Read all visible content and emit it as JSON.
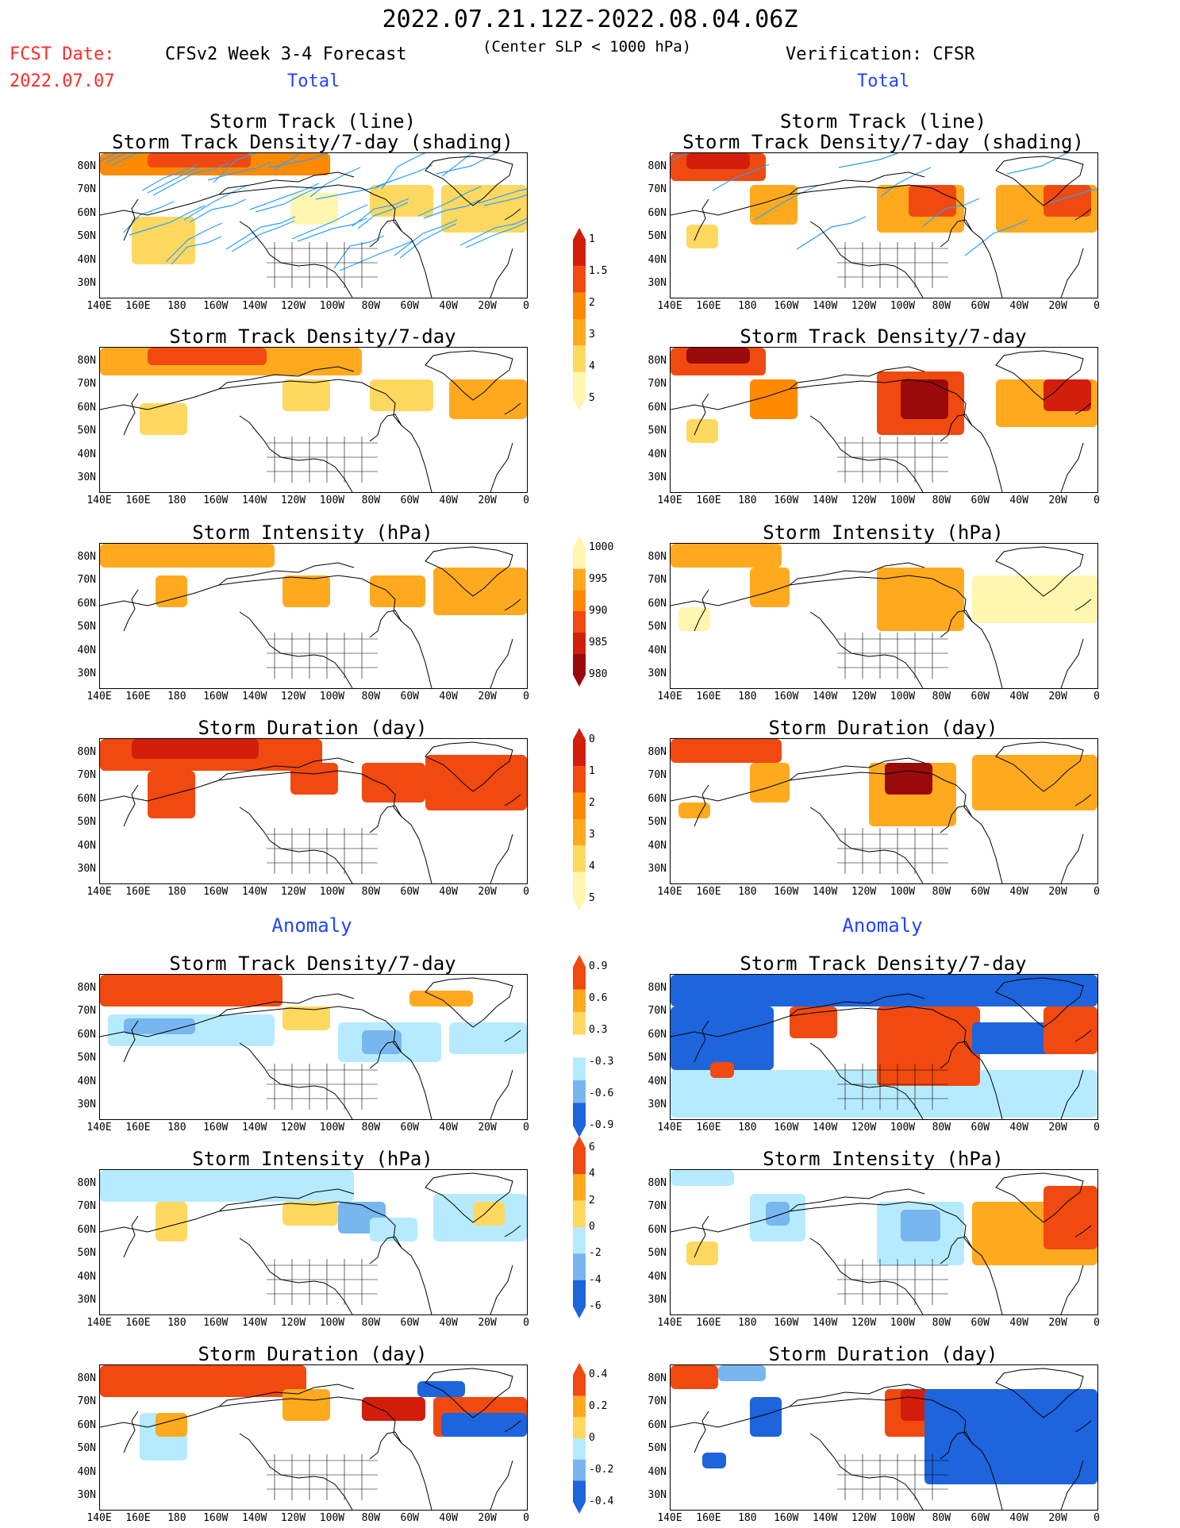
{
  "header": {
    "date_range": "2022.07.21.12Z-2022.08.04.06Z",
    "fcst_date_label": "FCST Date:",
    "fcst_date_value": "2022.07.07",
    "model": "CFSv2 Week 3-4 Forecast",
    "criterion": "(Center SLP < 1000 hPa)",
    "verification": "Verification: CFSR",
    "left_section": "Total",
    "right_section": "Total"
  },
  "sections": {
    "total": "Total",
    "anomaly": "Anomaly"
  },
  "panels": {
    "track": "Storm Track (line)",
    "track_density_shading": "Storm Track Density/7-day (shading)",
    "density": "Storm Track Density/7-day",
    "intensity": "Storm Intensity (hPa)",
    "duration": "Storm Duration (day)"
  },
  "axes": {
    "lat_labels": [
      "80N",
      "70N",
      "60N",
      "50N",
      "40N",
      "30N"
    ],
    "lon_labels": [
      "140E",
      "160E",
      "180",
      "160W",
      "140W",
      "120W",
      "100W",
      "80W",
      "60W",
      "40W",
      "20W",
      "0"
    ]
  },
  "colorbars": {
    "density": [
      "1",
      "1.5",
      "2",
      "3",
      "4",
      "5"
    ],
    "intensity": [
      "1000",
      "995",
      "990",
      "985",
      "980"
    ],
    "duration": [
      "0",
      "1",
      "2",
      "3",
      "4",
      "5"
    ],
    "density_anom": [
      "0.9",
      "0.6",
      "0.3",
      "-0.3",
      "-0.6",
      "-0.9"
    ],
    "intensity_anom": [
      "6",
      "4",
      "2",
      "0",
      "-2",
      "-4",
      "-6"
    ],
    "duration_anom": [
      "0.4",
      "0.2",
      "0",
      "-0.2",
      "-0.4"
    ]
  },
  "colors": {
    "pale_yellow": "#fff6b0",
    "yellow": "#ffd860",
    "orange_light": "#ffaa1e",
    "orange": "#ff8a00",
    "red_orange": "#f04a10",
    "red": "#d21e0a",
    "dark_red": "#9b0a0a",
    "light_blue": "#b6ebff",
    "blue_mid": "#78b6f0",
    "blue": "#1e64dc",
    "track_line": "#2aa0ff"
  }
}
